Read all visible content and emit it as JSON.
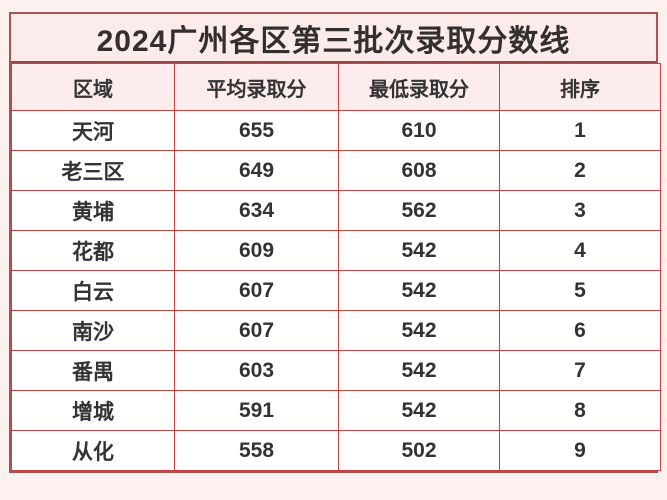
{
  "page": {
    "background_color": "#fdf1f0",
    "border_color_outer": "#a85252",
    "border_color_inner": "#c74241",
    "title_band_color": "#fcebeb",
    "header_band_color": "#fcecec",
    "row_color": "#ffffff",
    "text_color": "#333333"
  },
  "chart_data": {
    "type": "table",
    "title": "2024广州各区第三批次录取分数线",
    "columns": [
      "区域",
      "平均录取分",
      "最低录取分",
      "排序"
    ],
    "rows": [
      [
        "天河",
        655,
        610,
        1
      ],
      [
        "老三区",
        649,
        608,
        2
      ],
      [
        "黄埔",
        634,
        562,
        3
      ],
      [
        "花都",
        609,
        542,
        4
      ],
      [
        "白云",
        607,
        542,
        5
      ],
      [
        "南沙",
        607,
        542,
        6
      ],
      [
        "番禺",
        603,
        542,
        7
      ],
      [
        "增城",
        591,
        542,
        8
      ],
      [
        "从化",
        558,
        502,
        9
      ]
    ]
  }
}
